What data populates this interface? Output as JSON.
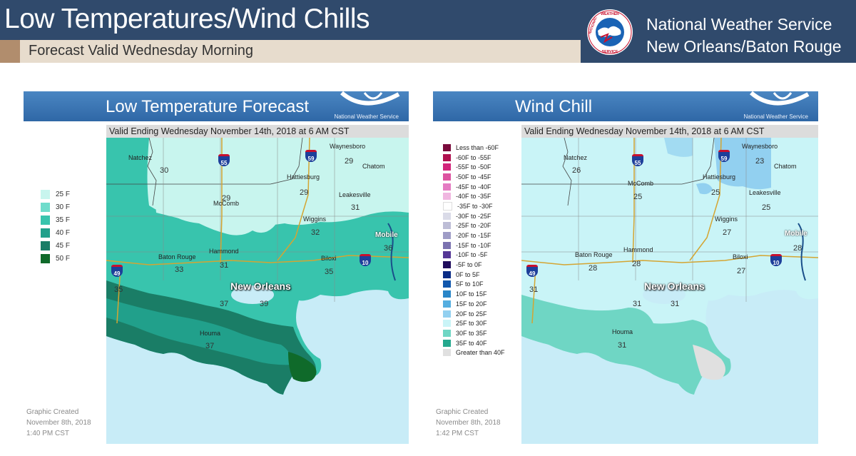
{
  "header": {
    "title": "Low Temperatures/Wind Chills",
    "subtitle": "Forecast Valid Wednesday Morning",
    "org_line1": "National Weather Service",
    "org_line2": "New Orleans/Baton Rouge",
    "logo_text": "NATIONAL WEATHER SERVICE"
  },
  "left_panel": {
    "title": "Low Temperature Forecast",
    "brand": "National Weather Service",
    "valid": "Valid Ending Wednesday November 14th, 2018 at 6 AM CST",
    "created": [
      "Graphic Created",
      "November 8th, 2018",
      "1:40 PM CST"
    ],
    "legend": [
      {
        "label": "25 F",
        "color": "#c8f5ee"
      },
      {
        "label": "30 F",
        "color": "#6fdccb"
      },
      {
        "label": "35 F",
        "color": "#38c4ad"
      },
      {
        "label": "40 F",
        "color": "#21a08b"
      },
      {
        "label": "45 F",
        "color": "#1a7d66"
      },
      {
        "label": "50 F",
        "color": "#0f6a2a"
      }
    ],
    "values": {
      "natchez": "30",
      "mccomb": "29",
      "hattiesburg": "29",
      "waynesboro": "29",
      "leakesville": "31",
      "wiggins": "32",
      "mobile": "36",
      "baton_rouge": "33",
      "hammond": "31",
      "biloxi": "35",
      "lafayette": "35",
      "new_orleans_w": "37",
      "new_orleans_e": "39",
      "houma": "37"
    }
  },
  "right_panel": {
    "title": "Wind Chill",
    "brand": "National Weather Service",
    "valid": "Valid Ending Wednesday November 14th, 2018 at 6 AM CST",
    "created": [
      "Graphic Created",
      "November 8th, 2018",
      "1:42 PM CST"
    ],
    "legend": [
      {
        "label": "Less than -60F",
        "color": "#7a0a3c"
      },
      {
        "label": "-60F to -55F",
        "color": "#b0104f"
      },
      {
        "label": "-55F to -50F",
        "color": "#d2247a"
      },
      {
        "label": "-50F to -45F",
        "color": "#dd53a0"
      },
      {
        "label": "-45F to -40F",
        "color": "#e47bc2"
      },
      {
        "label": "-40F to -35F",
        "color": "#f0b6e0"
      },
      {
        "label": "-35F to -30F",
        "color": "#ffffff"
      },
      {
        "label": "-30F to -25F",
        "color": "#dadbe8"
      },
      {
        "label": "-25F to -20F",
        "color": "#bdbdd6"
      },
      {
        "label": "-20F to -15F",
        "color": "#9e9cc6"
      },
      {
        "label": "-15F to -10F",
        "color": "#7b72b0"
      },
      {
        "label": "-10F to -5F",
        "color": "#553796"
      },
      {
        "label": "-5F to 0F",
        "color": "#1f0c5c"
      },
      {
        "label": "0F to 5F",
        "color": "#0a2c86"
      },
      {
        "label": "5F to 10F",
        "color": "#1157ad"
      },
      {
        "label": "10F to 15F",
        "color": "#2a86c8"
      },
      {
        "label": "15F to 20F",
        "color": "#55aee0"
      },
      {
        "label": "20F to 25F",
        "color": "#92d0f0"
      },
      {
        "label": "25F to 30F",
        "color": "#c9f4f7"
      },
      {
        "label": "30F to 35F",
        "color": "#6fd6c4"
      },
      {
        "label": "35F to 40F",
        "color": "#25a88e"
      },
      {
        "label": "Greater than 40F",
        "color": "#e0e0e0"
      }
    ],
    "values": {
      "natchez": "26",
      "mccomb": "25",
      "hattiesburg": "25",
      "waynesboro": "23",
      "leakesville": "25",
      "wiggins": "27",
      "mobile": "28",
      "baton_rouge": "28",
      "hammond": "28",
      "biloxi": "27",
      "lafayette": "31",
      "new_orleans_w": "31",
      "new_orleans_e": "31",
      "houma": "31"
    }
  },
  "cities": {
    "natchez": "Natchez",
    "mccomb": "McComb",
    "hattiesburg": "Hattiesburg",
    "waynesboro": "Waynesboro",
    "chatom": "Chatom",
    "leakesville": "Leakesville",
    "wiggins": "Wiggins",
    "mobile": "Mobile",
    "baton_rouge": "Baton Rouge",
    "hammond": "Hammond",
    "biloxi": "Biloxi",
    "houma": "Houma",
    "new_orleans": "New Orleans"
  },
  "highways": {
    "i55": "55",
    "i59": "59",
    "i10": "10",
    "i49": "49"
  }
}
